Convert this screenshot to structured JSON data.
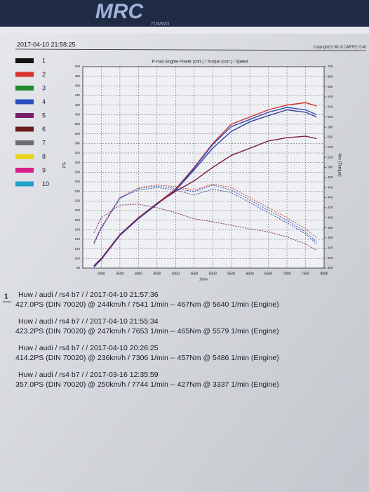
{
  "header": {
    "logo": "MRC",
    "logo_sub": "TUNING",
    "timestamp": "2017-04-10 21:58:25",
    "copyright": "Copyright(C) 98-10 CARTEC 5.40"
  },
  "chart_data": {
    "type": "line",
    "title": "P-max Engine Power (corr.) / Torque (corr.) / Speed",
    "x_label": "1/min",
    "y_label": "PS",
    "y2_label": "Nm (Torque)",
    "legend": [
      {
        "label": "1",
        "color": "#111111"
      },
      {
        "label": "2",
        "color": "#d8322a"
      },
      {
        "label": "3",
        "color": "#1f8a2e"
      },
      {
        "label": "4",
        "color": "#2a4fc0"
      },
      {
        "label": "5",
        "color": "#7a1f6e"
      },
      {
        "label": "6",
        "color": "#6b1d1d"
      },
      {
        "label": "7",
        "color": "#6d6d6d"
      },
      {
        "label": "8",
        "color": "#e8d21a"
      },
      {
        "label": "9",
        "color": "#d81f8a"
      },
      {
        "label": "10",
        "color": "#1fa0c8"
      }
    ],
    "x": [
      1800,
      2000,
      2500,
      3000,
      3500,
      4000,
      4500,
      5000,
      5500,
      6000,
      6500,
      7000,
      7500,
      7800
    ],
    "series": [
      {
        "color": "#d8322a",
        "values": [
          85,
          100,
          150,
          185,
          215,
          245,
          290,
          340,
          380,
          395,
          410,
          420,
          425,
          418
        ]
      },
      {
        "color": "#2a4fc0",
        "values": [
          82,
          98,
          148,
          183,
          213,
          243,
          288,
          338,
          375,
          390,
          405,
          415,
          410,
          400
        ]
      },
      {
        "color": "#3a3f9a",
        "values": [
          84,
          99,
          149,
          184,
          214,
          242,
          285,
          330,
          365,
          385,
          398,
          410,
          405,
          395
        ]
      },
      {
        "color": "#7a1f4e",
        "values": [
          85,
          100,
          150,
          185,
          215,
          240,
          262,
          290,
          315,
          330,
          345,
          352,
          355,
          350
        ]
      },
      {
        "color": "#d8322a",
        "axis": "y2",
        "values": [
          350,
          380,
          440,
          460,
          465,
          462,
          455,
          467,
          460,
          440,
          420,
          400,
          378,
          360
        ]
      },
      {
        "color": "#2a4fc0",
        "axis": "y2",
        "values": [
          348,
          378,
          438,
          458,
          463,
          458,
          452,
          465,
          455,
          435,
          415,
          395,
          372,
          352
        ]
      },
      {
        "color": "#3a3f9a",
        "axis": "y2",
        "values": [
          352,
          382,
          440,
          455,
          460,
          455,
          445,
          457,
          450,
          430,
          410,
          390,
          368,
          348
        ]
      },
      {
        "color": "#7a1f4e",
        "axis": "y2",
        "values": [
          370,
          400,
          425,
          427,
          420,
          410,
          398,
          392,
          385,
          378,
          372,
          362,
          348,
          335
        ]
      }
    ],
    "xlim": [
      1500,
      8000
    ],
    "xticks": [
      2000,
      2500,
      3000,
      3500,
      4000,
      4500,
      5000,
      5500,
      6000,
      6500,
      7000,
      7500,
      8000
    ],
    "ylim": [
      80,
      500
    ],
    "yticks": [
      80,
      100,
      120,
      140,
      160,
      180,
      200,
      220,
      240,
      260,
      280,
      300,
      320,
      340,
      360,
      380,
      400,
      420,
      440,
      460,
      480,
      500
    ],
    "y2lim": [
      300,
      700
    ],
    "y2ticks": [
      300,
      320,
      340,
      360,
      380,
      400,
      420,
      440,
      460,
      480,
      500,
      520,
      540,
      560,
      580,
      600,
      620,
      640,
      660,
      680,
      700
    ],
    "grid": true
  },
  "results": [
    {
      "marker": "1",
      "line1": "Huw / audi / rs4 b7 /  / 2017-04-10 21:57:36",
      "line2": "427.0PS (DIN 70020) @ 244km/h / 7541 1/min -- 467Nm @ 5640 1/min (Engine)"
    },
    {
      "line1": "Huw / audi / rs4 b7 /  / 2017-04-10 21:55:34",
      "line2": "423.2PS (DIN 70020) @ 247km/h / 7653 1/min -- 465Nm @ 5579 1/min (Engine)"
    },
    {
      "line1": "Huw / audi / rs4 b7 /  / 2017-04-10 20:26:25",
      "line2": "414.2PS (DIN 70020) @ 236km/h / 7306 1/min -- 457Nm @ 5486 1/min (Engine)"
    },
    {
      "line1": "Huw / audi / rs4 b7 /  / 2017-03-16 12:35:59",
      "line2": "357.0PS (DIN 70020) @ 250km/h / 7744 1/min -- 427Nm @ 3337 1/min (Engine)"
    }
  ]
}
